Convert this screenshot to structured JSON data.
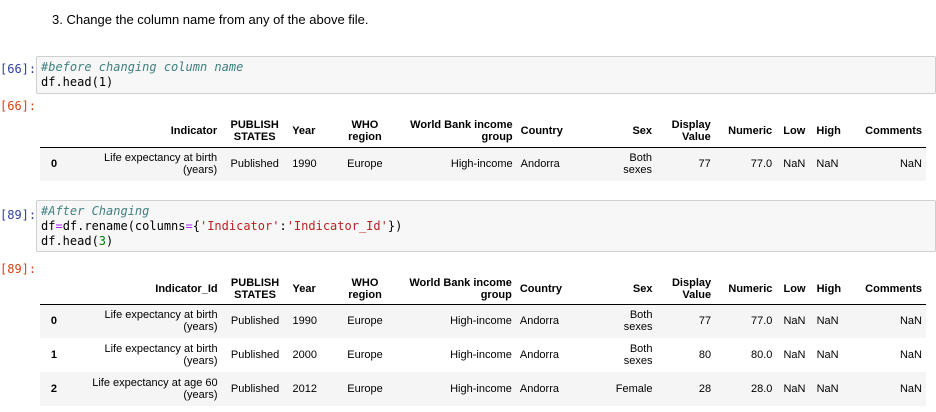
{
  "markdown": {
    "text": "3. Change the column name from any of the above file."
  },
  "cell1": {
    "in_prompt": "[66]:",
    "comment": "#before changing column name",
    "code_line2": "df.head(1)",
    "out_prompt": "[66]:"
  },
  "cell2": {
    "in_prompt": "[89]:",
    "comment": "#After Changing",
    "line2_a": "df",
    "line2_b": "=",
    "line2_c": "df.rename(columns",
    "line2_d": "=",
    "line2_e": "{",
    "line2_f": "'Indicator'",
    "line2_g": ":",
    "line2_h": "'Indicator_Id'",
    "line2_i": "})",
    "line3_a": "df.head(",
    "line3_b": "3",
    "line3_c": ")",
    "out_prompt": "[89]:"
  },
  "table1": {
    "headers": [
      "Indicator",
      "PUBLISH\nSTATES",
      "Year",
      "WHO\nregion",
      "World Bank income\ngroup",
      "Country",
      "Sex",
      "Display\nValue",
      "Numeric",
      "Low",
      "High",
      "Comments"
    ],
    "rows": [
      [
        "0",
        "Life expectancy at birth\n(years)",
        "Published",
        "1990",
        "Europe",
        "High-income",
        "Andorra",
        "Both\nsexes",
        "77",
        "77.0",
        "NaN",
        "NaN",
        "NaN"
      ]
    ]
  },
  "table2": {
    "headers": [
      "Indicator_Id",
      "PUBLISH\nSTATES",
      "Year",
      "WHO\nregion",
      "World Bank income\ngroup",
      "Country",
      "Sex",
      "Display\nValue",
      "Numeric",
      "Low",
      "High",
      "Comments"
    ],
    "rows": [
      [
        "0",
        "Life expectancy at birth\n(years)",
        "Published",
        "1990",
        "Europe",
        "High-income",
        "Andorra",
        "Both\nsexes",
        "77",
        "77.0",
        "NaN",
        "NaN",
        "NaN"
      ],
      [
        "1",
        "Life expectancy at birth\n(years)",
        "Published",
        "2000",
        "Europe",
        "High-income",
        "Andorra",
        "Both\nsexes",
        "80",
        "80.0",
        "NaN",
        "NaN",
        "NaN"
      ],
      [
        "2",
        "Life expectancy at age 60\n(years)",
        "Published",
        "2012",
        "Europe",
        "High-income",
        "Andorra",
        "Female",
        "28",
        "28.0",
        "NaN",
        "NaN",
        "NaN"
      ]
    ]
  }
}
